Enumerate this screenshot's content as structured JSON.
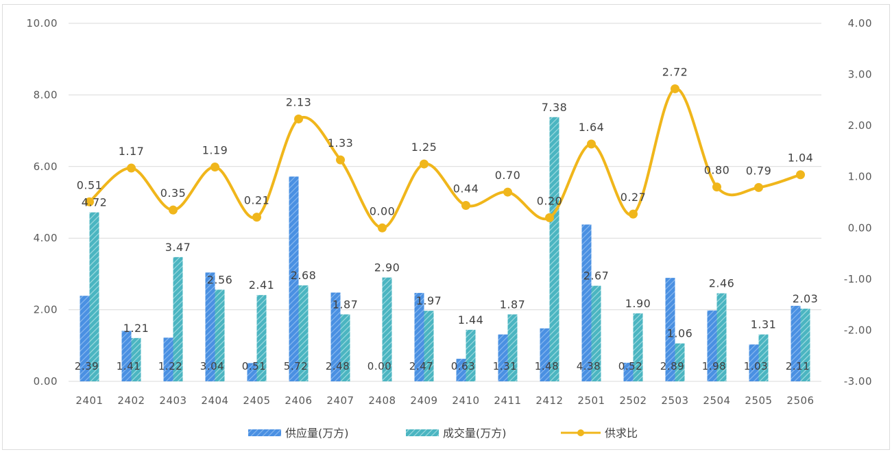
{
  "chart_data": {
    "type": "bar",
    "categories": [
      "2401",
      "2402",
      "2403",
      "2404",
      "2405",
      "2406",
      "2407",
      "2408",
      "2409",
      "2410",
      "2411",
      "2412",
      "2501",
      "2502",
      "2503",
      "2504",
      "2505",
      "2506"
    ],
    "series": [
      {
        "name": "供应量(万方)",
        "kind": "bar",
        "axis": "left",
        "color": "#4a90e2",
        "values": [
          2.39,
          1.41,
          1.22,
          3.04,
          0.51,
          5.72,
          2.48,
          0.0,
          2.47,
          0.63,
          1.31,
          1.48,
          4.38,
          0.52,
          2.89,
          1.98,
          1.03,
          2.11
        ],
        "labels": [
          "2.39",
          "1.41",
          "1.22",
          "3.04",
          "0.51",
          "5.72",
          "2.48",
          "0.00",
          "2.47",
          "0.63",
          "1.31",
          "1.48",
          "4.38",
          "0.52",
          "2.89",
          "1.98",
          "1.03",
          "2.11"
        ]
      },
      {
        "name": "成交量(万方)",
        "kind": "bar",
        "axis": "left",
        "color": "#4bb5c1",
        "values": [
          4.72,
          1.21,
          3.47,
          2.56,
          2.41,
          2.68,
          1.87,
          2.9,
          1.97,
          1.44,
          1.87,
          7.38,
          2.67,
          1.9,
          1.06,
          2.46,
          1.31,
          2.03
        ],
        "labels": [
          "4.72",
          "1.21",
          "3.47",
          "2.56",
          "2.41",
          "2.68",
          "1.87",
          "2.90",
          "1.97",
          "1.44",
          "1.87",
          "7.38",
          "2.67",
          "1.90",
          "1.06",
          "2.46",
          "1.31",
          "2.03"
        ]
      },
      {
        "name": "供求比",
        "kind": "line",
        "axis": "right",
        "color": "#f0b61b",
        "values": [
          0.51,
          1.17,
          0.35,
          1.19,
          0.21,
          2.13,
          1.33,
          0.0,
          1.25,
          0.44,
          0.7,
          0.2,
          1.64,
          0.27,
          2.72,
          0.8,
          0.79,
          1.04
        ],
        "labels": [
          "0.51",
          "1.17",
          "0.35",
          "1.19",
          "0.21",
          "2.13",
          "1.33",
          "0.00",
          "1.25",
          "0.44",
          "0.70",
          "0.20",
          "1.64",
          "0.27",
          "2.72",
          "0.80",
          "0.79",
          "1.04"
        ]
      }
    ],
    "left_axis": {
      "ylim": [
        0,
        10
      ],
      "ticks": [
        "0.00",
        "2.00",
        "4.00",
        "6.00",
        "8.00",
        "10.00"
      ]
    },
    "right_axis": {
      "ylim": [
        -3,
        4
      ],
      "ticks": [
        "-3.00",
        "-2.00",
        "-1.00",
        "0.00",
        "1.00",
        "2.00",
        "3.00",
        "4.00"
      ]
    },
    "grid": true,
    "legend_position": "bottom"
  }
}
